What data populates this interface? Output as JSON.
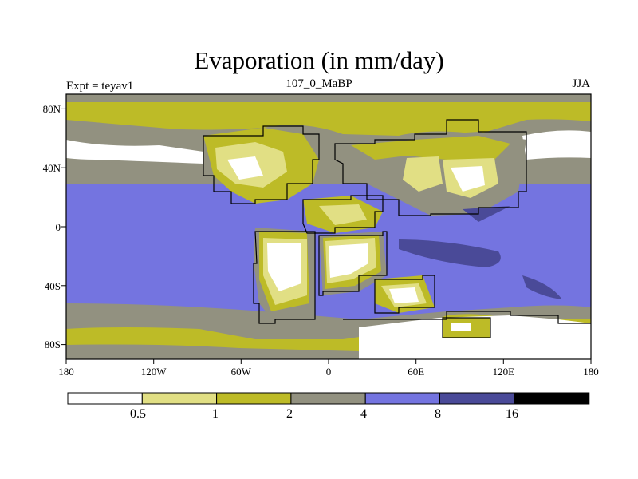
{
  "title": "Evaporation (in mm/day)",
  "subtitle_left": "Expt = teyav1",
  "subtitle_center": "107_0_MaBP",
  "subtitle_right": "JJA",
  "x_ticks": [
    {
      "value": -180,
      "label": "180"
    },
    {
      "value": -120,
      "label": "120W"
    },
    {
      "value": -60,
      "label": "60W"
    },
    {
      "value": 0,
      "label": "0"
    },
    {
      "value": 60,
      "label": "60E"
    },
    {
      "value": 120,
      "label": "120E"
    },
    {
      "value": 180,
      "label": "180"
    }
  ],
  "y_ticks": [
    {
      "value": 80,
      "label": "80N"
    },
    {
      "value": 40,
      "label": "40N"
    },
    {
      "value": 0,
      "label": "0"
    },
    {
      "value": -40,
      "label": "40S"
    },
    {
      "value": -80,
      "label": "80S"
    }
  ],
  "colorbar": {
    "colors": [
      "#ffffff",
      "#e1df84",
      "#bdbb27",
      "#929180",
      "#7474e0",
      "#4a4a98",
      "#000000"
    ],
    "levels": [
      "0.5",
      "1",
      "2",
      "4",
      "8",
      "16"
    ]
  },
  "chart_data": {
    "type": "heatmap",
    "title": "Evaporation (in mm/day)",
    "xlim": [
      -180,
      180
    ],
    "ylim": [
      -90,
      90
    ],
    "units": "mm/day",
    "contour_levels": [
      0.5,
      1,
      2,
      4,
      8,
      16
    ],
    "x_tick_labels": [
      "180",
      "120W",
      "60W",
      "0",
      "60E",
      "120E",
      "180"
    ],
    "y_tick_labels": [
      "80N",
      "40N",
      "0",
      "40S",
      "80S"
    ]
  }
}
